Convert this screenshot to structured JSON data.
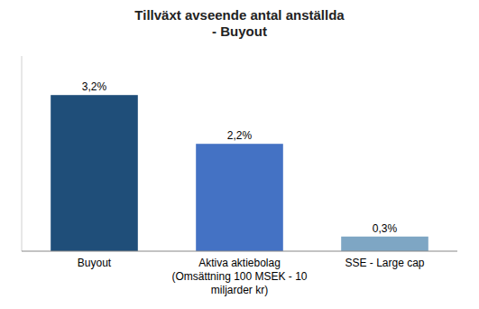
{
  "chart_data": {
    "type": "bar",
    "title": "Tillväxt avseende antal anställda\n- Buyout",
    "categories": [
      "Buyout",
      "Aktiva aktiebolag\n(Omsättning 100 MSEK - 10\nmiljarder kr)",
      "SSE - Large cap"
    ],
    "values": [
      3.2,
      2.2,
      0.3
    ],
    "value_labels": [
      "3,2%",
      "2,2%",
      "0,3%"
    ],
    "colors": [
      "#1F4E79",
      "#4472C4",
      "#7EA6C4"
    ],
    "ylim": [
      0,
      4.0
    ],
    "data_labels": true,
    "tick_labels": "x",
    "grid": false
  }
}
